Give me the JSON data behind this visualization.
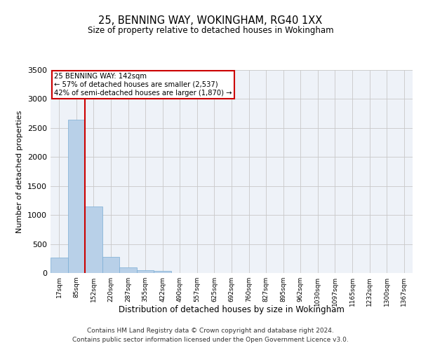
{
  "title": "25, BENNING WAY, WOKINGHAM, RG40 1XX",
  "subtitle": "Size of property relative to detached houses in Wokingham",
  "xlabel": "Distribution of detached houses by size in Wokingham",
  "ylabel": "Number of detached properties",
  "bar_color": "#b8d0e8",
  "bar_edge_color": "#7aadd4",
  "grid_color": "#c8c8c8",
  "background_color": "#eef2f8",
  "categories": [
    "17sqm",
    "85sqm",
    "152sqm",
    "220sqm",
    "287sqm",
    "355sqm",
    "422sqm",
    "490sqm",
    "557sqm",
    "625sqm",
    "692sqm",
    "760sqm",
    "827sqm",
    "895sqm",
    "962sqm",
    "1030sqm",
    "1097sqm",
    "1165sqm",
    "1232sqm",
    "1300sqm",
    "1367sqm"
  ],
  "values": [
    270,
    2640,
    1150,
    280,
    95,
    45,
    35,
    0,
    0,
    0,
    0,
    0,
    0,
    0,
    0,
    0,
    0,
    0,
    0,
    0,
    0
  ],
  "ylim": [
    0,
    3500
  ],
  "yticks": [
    0,
    500,
    1000,
    1500,
    2000,
    2500,
    3000,
    3500
  ],
  "vline_x": 1.5,
  "property_label": "25 BENNING WAY: 142sqm",
  "annotation_line1": "← 57% of detached houses are smaller (2,537)",
  "annotation_line2": "42% of semi-detached houses are larger (1,870) →",
  "annotation_box_color": "#cc0000",
  "vline_color": "#cc0000",
  "footer_line1": "Contains HM Land Registry data © Crown copyright and database right 2024.",
  "footer_line2": "Contains public sector information licensed under the Open Government Licence v3.0."
}
